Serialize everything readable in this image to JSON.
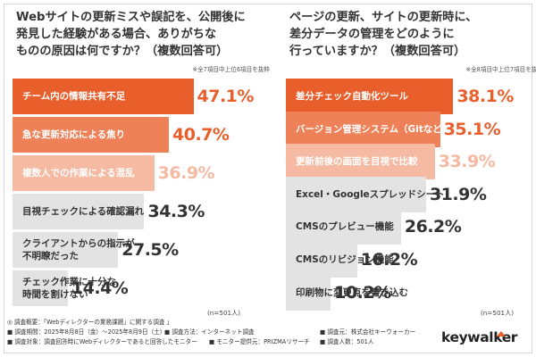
{
  "colors": {
    "accent_dark": "#e85f2c",
    "accent_mid": "#ef8159",
    "accent_light": "#f6b9a2",
    "neutral": "#e3e3e3"
  },
  "left": {
    "question": "Webサイトの更新ミスや誤記を、公開後に\n発見した経験がある場合、ありがちな\nものの原因は何ですか？（複数回答可）",
    "note": "※全7項目中上位6項目を抜粋",
    "n_label": "(n=501人)"
  },
  "right": {
    "question": "ページの更新、サイトの更新時に、\n差分データの管理をどのように\n行っていますか？（複数回答可）",
    "note": "※全8項目中上位7項目を抜粋",
    "n_label": "(n=501人)"
  },
  "footer": {
    "title": "◎ 調査概要：「Webディレクターの業務課題」に関する調査 」",
    "period": "■ 調査期間：2025年8月8日（金）〜2025年8月9日（土）",
    "method": "■ 調査方法：インターネット調査",
    "sponsor": "■ 調査元：株式会社キーウォーカー",
    "target": "■ 調査対象：調査回答時にWebディレクターであると回答したモニター",
    "provider": "■ モニター提供元：PRIZMAリサーチ",
    "count": "■ 調査人数：501人"
  },
  "logo": "keywalker",
  "chart_data": [
    {
      "type": "bar",
      "orientation": "horizontal",
      "title": "Webサイトの更新ミスや誤記を、公開後に発見した経験がある場合、ありがちなものの原因は何ですか？（複数回答可）",
      "categories": [
        "チーム内の情報共有不足",
        "急な更新対応による焦り",
        "複数人での作業による混乱",
        "目視チェックによる確認漏れ",
        "クライアントからの指示が\n不明瞭だった",
        "チェック作業に十分な\n時間を割けない"
      ],
      "values": [
        47.1,
        40.7,
        36.9,
        34.3,
        27.5,
        14.4
      ],
      "value_labels": [
        "47.1%",
        "40.7%",
        "36.9%",
        "34.3%",
        "27.5%",
        "14.4%"
      ],
      "xlim": [
        0,
        70
      ],
      "grid": false,
      "n": "(n=501人)"
    },
    {
      "type": "bar",
      "orientation": "horizontal",
      "title": "ページの更新、サイトの更新時に、差分データの管理をどのように行っていますか？（複数回答可）",
      "categories": [
        "差分チェック自動化ツール",
        "バージョン管理システム（Gitなど）",
        "更新前後の画面を目視で比較",
        "Excel・Googleスプレッドシート",
        "CMSのプレビュー機能",
        "CMSのリビジョン機能",
        "印刷物に変更点を書き込む"
      ],
      "values": [
        38.1,
        35.1,
        33.9,
        31.9,
        26.2,
        16.2,
        10.2
      ],
      "value_labels": [
        "38.1%",
        "35.1%",
        "33.9%",
        "31.9%",
        "26.2%",
        "16.2%",
        "10.2%"
      ],
      "xlim": [
        0,
        55
      ],
      "grid": false,
      "n": "(n=501人)"
    }
  ]
}
